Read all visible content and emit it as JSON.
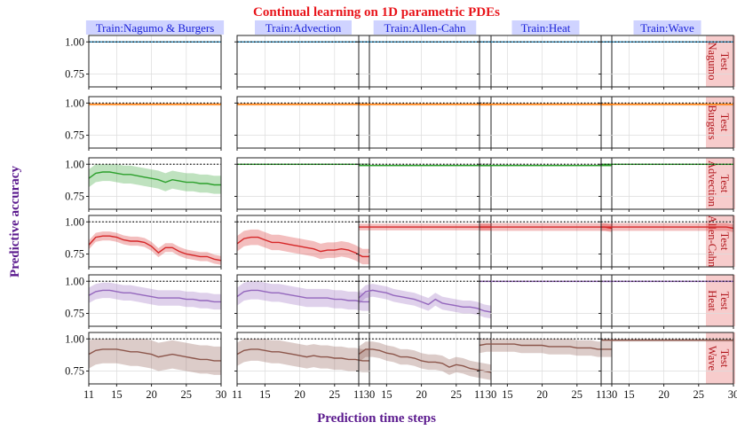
{
  "chart_data": {
    "type": "line",
    "title": "Continual learning on 1D parametric PDEs",
    "xlabel": "Prediction time steps",
    "ylabel": "Predictive accuracy",
    "xlim": [
      11,
      30
    ],
    "ylim": [
      0.65,
      1.05
    ],
    "xticks": [
      "11",
      "15",
      "20",
      "25",
      "30"
    ],
    "yticks": [
      "0.75",
      "1.00"
    ],
    "x": [
      11,
      12,
      13,
      14,
      15,
      16,
      17,
      18,
      19,
      20,
      21,
      22,
      23,
      24,
      25,
      26,
      27,
      28,
      29,
      30
    ],
    "reference_line": 1.0,
    "columns": [
      "Train:Nagumo & Burgers",
      "Train:Advection",
      "Train:Allen-Cahn",
      "Train:Heat",
      "Train:Wave"
    ],
    "rows": [
      {
        "label": [
          "Test",
          "Nagumo"
        ],
        "color": "#2a8cbf"
      },
      {
        "label": [
          "Test",
          "Burgers"
        ],
        "color": "#ff7f0e"
      },
      {
        "label": [
          "Test",
          "Advection"
        ],
        "color": "#2ca02c"
      },
      {
        "label": [
          "Test",
          "Allen-Cahn"
        ],
        "color": "#d62728"
      },
      {
        "label": [
          "Test",
          "Heat"
        ],
        "color": "#9467bd"
      },
      {
        "label": [
          "Test",
          "Wave"
        ],
        "color": "#8c564b"
      }
    ],
    "panels": [
      [
        {
          "mean": [
            1,
            1,
            1,
            1,
            1,
            1,
            1,
            1,
            1,
            1,
            1,
            1,
            1,
            1,
            1,
            1,
            1,
            1,
            1,
            1
          ],
          "band": 0.005
        },
        {
          "mean": [
            1,
            1,
            1,
            1,
            1,
            1,
            1,
            1,
            1,
            1,
            1,
            1,
            1,
            1,
            1,
            1,
            1,
            1,
            1,
            1
          ],
          "band": 0.005
        },
        {
          "mean": [
            1,
            1,
            1,
            1,
            1,
            1,
            1,
            1,
            1,
            1,
            1,
            1,
            1,
            1,
            1,
            1,
            1,
            1,
            1,
            1
          ],
          "band": 0.005
        },
        {
          "mean": [
            1,
            1,
            1,
            1,
            1,
            1,
            1,
            1,
            1,
            1,
            1,
            1,
            1,
            1,
            1,
            1,
            1,
            1,
            1,
            1
          ],
          "band": 0.005
        },
        {
          "mean": [
            1,
            1,
            1,
            1,
            1,
            1,
            1,
            1,
            1,
            1,
            1,
            1,
            1,
            1,
            1,
            1,
            1,
            1,
            1,
            1
          ],
          "band": 0.005
        }
      ],
      [
        {
          "mean": [
            0.99,
            0.99,
            0.99,
            0.99,
            0.99,
            0.99,
            0.99,
            0.99,
            0.99,
            0.99,
            0.99,
            0.99,
            0.99,
            0.99,
            0.99,
            0.99,
            0.99,
            0.99,
            0.99,
            0.99
          ],
          "band": 0.01
        },
        {
          "mean": [
            0.99,
            0.99,
            0.99,
            0.99,
            0.99,
            0.99,
            0.99,
            0.99,
            0.99,
            0.99,
            0.99,
            0.99,
            0.99,
            0.99,
            0.99,
            0.99,
            0.99,
            0.99,
            0.99,
            0.99
          ],
          "band": 0.01
        },
        {
          "mean": [
            0.99,
            0.99,
            0.99,
            0.99,
            0.99,
            0.99,
            0.99,
            0.99,
            0.99,
            0.99,
            0.99,
            0.99,
            0.99,
            0.99,
            0.99,
            0.99,
            0.99,
            0.99,
            0.99,
            0.99
          ],
          "band": 0.01
        },
        {
          "mean": [
            0.99,
            0.99,
            0.99,
            0.99,
            0.99,
            0.99,
            0.99,
            0.99,
            0.99,
            0.99,
            0.99,
            0.99,
            0.99,
            0.99,
            0.99,
            0.99,
            0.99,
            0.99,
            0.99,
            0.99
          ],
          "band": 0.01
        },
        {
          "mean": [
            0.99,
            0.99,
            0.99,
            0.99,
            0.99,
            0.99,
            0.99,
            0.99,
            0.99,
            0.99,
            0.99,
            0.99,
            0.99,
            0.99,
            0.99,
            0.99,
            0.99,
            0.99,
            0.99,
            0.99
          ],
          "band": 0.01
        }
      ],
      [
        {
          "mean": [
            0.89,
            0.93,
            0.94,
            0.94,
            0.93,
            0.92,
            0.92,
            0.91,
            0.9,
            0.89,
            0.88,
            0.86,
            0.88,
            0.87,
            0.86,
            0.86,
            0.85,
            0.85,
            0.84,
            0.84
          ],
          "band": 0.07
        },
        {
          "mean": [
            1,
            1,
            1,
            1,
            1,
            1,
            1,
            1,
            1,
            1,
            1,
            1,
            1,
            1,
            1,
            1,
            1,
            1,
            1,
            1
          ],
          "band": 0.006
        },
        {
          "mean": [
            0.99,
            0.99,
            0.99,
            0.99,
            0.99,
            0.99,
            0.99,
            0.99,
            0.99,
            0.99,
            0.99,
            0.99,
            0.99,
            0.99,
            0.99,
            0.99,
            0.99,
            0.99,
            0.99,
            0.99
          ],
          "band": 0.006
        },
        {
          "mean": [
            0.99,
            0.99,
            0.99,
            0.99,
            0.99,
            0.99,
            0.99,
            0.99,
            0.99,
            0.99,
            0.99,
            0.99,
            0.99,
            0.99,
            0.99,
            0.99,
            0.99,
            0.99,
            0.99,
            0.99
          ],
          "band": 0.006
        },
        {
          "mean": [
            1,
            1,
            1,
            1,
            1,
            1,
            1,
            1,
            1,
            1,
            1,
            1,
            1,
            1,
            1,
            1,
            1,
            1,
            1,
            1
          ],
          "band": 0.006
        }
      ],
      [
        {
          "mean": [
            0.82,
            0.88,
            0.89,
            0.89,
            0.88,
            0.86,
            0.85,
            0.85,
            0.84,
            0.81,
            0.76,
            0.8,
            0.8,
            0.77,
            0.75,
            0.74,
            0.73,
            0.73,
            0.71,
            0.7
          ],
          "band": 0.035
        },
        {
          "mean": [
            0.83,
            0.87,
            0.88,
            0.88,
            0.86,
            0.84,
            0.84,
            0.83,
            0.82,
            0.81,
            0.8,
            0.79,
            0.77,
            0.78,
            0.78,
            0.79,
            0.78,
            0.76,
            0.73,
            0.73
          ],
          "band": 0.06
        },
        {
          "mean": [
            0.96,
            0.96,
            0.96,
            0.96,
            0.96,
            0.96,
            0.96,
            0.96,
            0.96,
            0.96,
            0.96,
            0.96,
            0.96,
            0.96,
            0.96,
            0.96,
            0.96,
            0.96,
            0.96,
            0.96
          ],
          "band": 0.025
        },
        {
          "mean": [
            0.96,
            0.96,
            0.96,
            0.96,
            0.96,
            0.96,
            0.96,
            0.96,
            0.96,
            0.96,
            0.96,
            0.96,
            0.96,
            0.96,
            0.96,
            0.96,
            0.96,
            0.96,
            0.96,
            0.95
          ],
          "band": 0.03
        },
        {
          "mean": [
            0.96,
            0.96,
            0.96,
            0.96,
            0.96,
            0.96,
            0.96,
            0.96,
            0.96,
            0.96,
            0.96,
            0.96,
            0.96,
            0.96,
            0.96,
            0.96,
            0.96,
            0.96,
            0.96,
            0.95
          ],
          "band": 0.03
        }
      ],
      [
        {
          "mean": [
            0.89,
            0.92,
            0.93,
            0.93,
            0.92,
            0.91,
            0.91,
            0.9,
            0.89,
            0.88,
            0.87,
            0.87,
            0.87,
            0.87,
            0.86,
            0.86,
            0.85,
            0.85,
            0.84,
            0.84
          ],
          "band": 0.06
        },
        {
          "mean": [
            0.88,
            0.92,
            0.93,
            0.93,
            0.92,
            0.91,
            0.91,
            0.9,
            0.89,
            0.88,
            0.87,
            0.87,
            0.87,
            0.87,
            0.86,
            0.86,
            0.85,
            0.85,
            0.84,
            0.84
          ],
          "band": 0.07
        },
        {
          "mean": [
            0.87,
            0.92,
            0.93,
            0.92,
            0.91,
            0.89,
            0.88,
            0.87,
            0.86,
            0.84,
            0.82,
            0.86,
            0.83,
            0.82,
            0.81,
            0.8,
            0.8,
            0.79,
            0.77,
            0.76
          ],
          "band": 0.05
        },
        {
          "mean": [
            1,
            1,
            1,
            1,
            1,
            1,
            1,
            1,
            1,
            1,
            1,
            1,
            1,
            1,
            1,
            1,
            1,
            1,
            1,
            1
          ],
          "band": 0.008
        },
        {
          "mean": [
            1,
            1,
            1,
            1,
            1,
            1,
            1,
            1,
            1,
            1,
            1,
            1,
            1,
            1,
            1,
            1,
            1,
            1,
            1,
            1
          ],
          "band": 0.008
        }
      ],
      [
        {
          "mean": [
            0.88,
            0.91,
            0.92,
            0.92,
            0.92,
            0.91,
            0.9,
            0.9,
            0.89,
            0.88,
            0.86,
            0.87,
            0.88,
            0.87,
            0.86,
            0.85,
            0.84,
            0.84,
            0.83,
            0.83
          ],
          "band": 0.11
        },
        {
          "mean": [
            0.88,
            0.91,
            0.92,
            0.92,
            0.91,
            0.9,
            0.9,
            0.89,
            0.88,
            0.87,
            0.86,
            0.87,
            0.86,
            0.86,
            0.85,
            0.85,
            0.84,
            0.84,
            0.83,
            0.83
          ],
          "band": 0.09
        },
        {
          "mean": [
            0.88,
            0.92,
            0.92,
            0.91,
            0.89,
            0.88,
            0.86,
            0.86,
            0.85,
            0.83,
            0.82,
            0.82,
            0.81,
            0.78,
            0.8,
            0.79,
            0.77,
            0.76,
            0.75,
            0.74
          ],
          "band": 0.06
        },
        {
          "mean": [
            0.95,
            0.96,
            0.96,
            0.96,
            0.96,
            0.96,
            0.95,
            0.95,
            0.95,
            0.95,
            0.94,
            0.94,
            0.94,
            0.94,
            0.93,
            0.93,
            0.93,
            0.92,
            0.92,
            0.92
          ],
          "band": 0.06
        },
        {
          "mean": [
            0.99,
            0.99,
            0.99,
            0.99,
            0.99,
            0.99,
            0.99,
            0.99,
            0.99,
            0.99,
            0.99,
            0.99,
            0.99,
            0.99,
            0.99,
            0.99,
            0.99,
            0.99,
            0.99,
            0.99
          ],
          "band": 0.01
        }
      ]
    ]
  }
}
